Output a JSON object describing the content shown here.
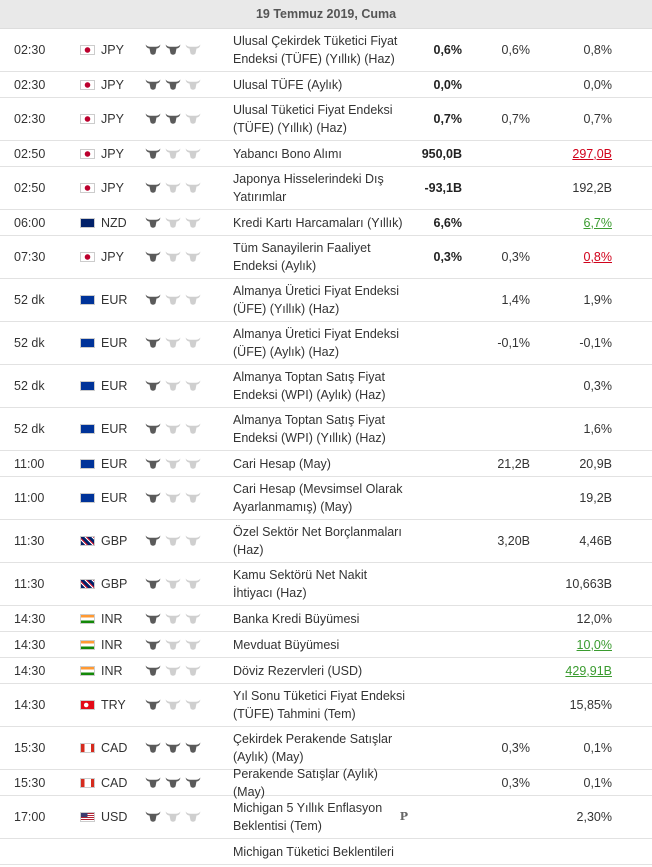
{
  "header": {
    "date": "19 Temmuz 2019, Cuma"
  },
  "colors": {
    "bull_on": "#5a5a5a",
    "bull_off": "#cfcfcf",
    "worse": "#d0021b",
    "better": "#3a9b2f"
  },
  "rows": [
    {
      "time": "02:30",
      "currency": "JPY",
      "importance": 2,
      "event": "Ulusal Çekirdek Tüketici Fiyat Endeksi (TÜFE) (Yıllık) (Haz)",
      "actual": "0,6%",
      "forecast": "0,6%",
      "previous": "0,8%"
    },
    {
      "time": "02:30",
      "currency": "JPY",
      "importance": 2,
      "event": "Ulusal TÜFE (Aylık)",
      "actual": "0,0%",
      "previous": "0,0%"
    },
    {
      "time": "02:30",
      "currency": "JPY",
      "importance": 2,
      "event": "Ulusal Tüketici Fiyat Endeksi (TÜFE) (Yıllık) (Haz)",
      "actual": "0,7%",
      "forecast": "0,7%",
      "previous": "0,7%"
    },
    {
      "time": "02:50",
      "currency": "JPY",
      "importance": 1,
      "event": "Yabancı Bono Alımı",
      "actual": "950,0B",
      "previous": "297,0B",
      "previous_color": "worse"
    },
    {
      "time": "02:50",
      "currency": "JPY",
      "importance": 1,
      "event": "Japonya Hisselerindeki Dış Yatırımlar",
      "actual": "-93,1B",
      "previous": "192,2B"
    },
    {
      "time": "06:00",
      "currency": "NZD",
      "importance": 1,
      "event": "Kredi Kartı Harcamaları (Yıllık)",
      "actual": "6,6%",
      "previous": "6,7%",
      "previous_color": "better"
    },
    {
      "time": "07:30",
      "currency": "JPY",
      "importance": 1,
      "event": "Tüm Sanayilerin Faaliyet Endeksi (Aylık)",
      "actual": "0,3%",
      "forecast": "0,3%",
      "previous": "0,8%",
      "previous_color": "worse"
    },
    {
      "time": "52 dk",
      "currency": "EUR",
      "importance": 1,
      "event": "Almanya Üretici Fiyat Endeksi (ÜFE) (Yıllık) (Haz)",
      "forecast": "1,4%",
      "previous": "1,9%"
    },
    {
      "time": "52 dk",
      "currency": "EUR",
      "importance": 1,
      "event": "Almanya Üretici Fiyat Endeksi (ÜFE) (Aylık) (Haz)",
      "forecast": "-0,1%",
      "previous": "-0,1%"
    },
    {
      "time": "52 dk",
      "currency": "EUR",
      "importance": 1,
      "event": "Almanya Toptan Satış Fiyat Endeksi (WPI) (Aylık) (Haz)",
      "previous": "0,3%"
    },
    {
      "time": "52 dk",
      "currency": "EUR",
      "importance": 1,
      "event": "Almanya Toptan Satış Fiyat Endeksi (WPI) (Yıllık) (Haz)",
      "previous": "1,6%"
    },
    {
      "time": "11:00",
      "currency": "EUR",
      "importance": 1,
      "event": "Cari Hesap (May)",
      "forecast": "21,2B",
      "previous": "20,9B"
    },
    {
      "time": "11:00",
      "currency": "EUR",
      "importance": 1,
      "event": "Cari Hesap (Mevsimsel Olarak Ayarlanmamış) (May)",
      "previous": "19,2B"
    },
    {
      "time": "11:30",
      "currency": "GBP",
      "importance": 1,
      "event": "Özel Sektör Net Borçlanmaları (Haz)",
      "forecast": "3,20B",
      "previous": "4,46B"
    },
    {
      "time": "11:30",
      "currency": "GBP",
      "importance": 1,
      "event": "Kamu Sektörü Net Nakit İhtiyacı (Haz)",
      "previous": "10,663B"
    },
    {
      "time": "14:30",
      "currency": "INR",
      "importance": 1,
      "event": "Banka Kredi Büyümesi",
      "previous": "12,0%"
    },
    {
      "time": "14:30",
      "currency": "INR",
      "importance": 1,
      "event": "Mevduat Büyümesi",
      "previous": "10,0%",
      "previous_color": "better"
    },
    {
      "time": "14:30",
      "currency": "INR",
      "importance": 1,
      "event": "Döviz Rezervleri (USD)",
      "previous": "429,91B",
      "previous_color": "better"
    },
    {
      "time": "14:30",
      "currency": "TRY",
      "importance": 1,
      "event": "Yıl Sonu Tüketici Fiyat Endeksi (TÜFE) Tahmini (Tem)",
      "previous": "15,85%"
    },
    {
      "time": "15:30",
      "currency": "CAD",
      "importance": 3,
      "event": "Çekirdek Perakende Satışlar (Aylık) (May)",
      "forecast": "0,3%",
      "previous": "0,1%"
    },
    {
      "time": "15:30",
      "currency": "CAD",
      "importance": 3,
      "event": "Perakende Satışlar (Aylık) (May)",
      "forecast": "0,3%",
      "previous": "0,1%"
    },
    {
      "time": "17:00",
      "currency": "USD",
      "importance": 1,
      "event": "Michigan 5 Yıllık Enflasyon Beklentisi (Tem)",
      "marker": "P",
      "previous": "2,30%"
    },
    {
      "event": "Michigan Tüketici Beklentileri"
    }
  ]
}
